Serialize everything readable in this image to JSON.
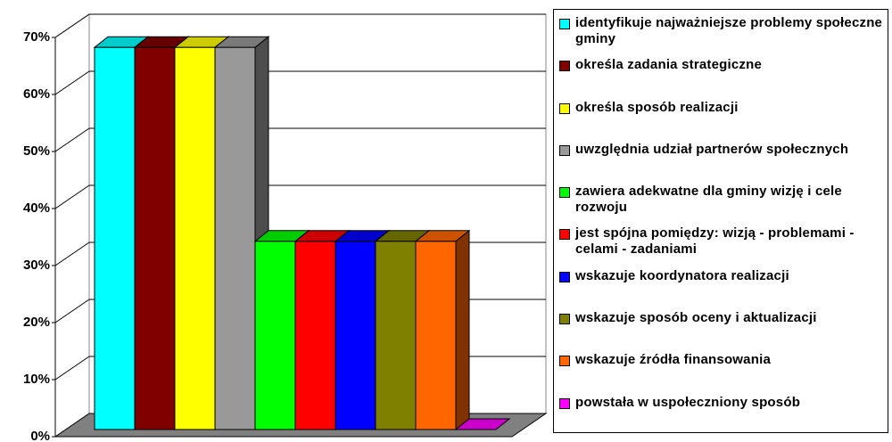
{
  "chart_data": {
    "type": "bar3d",
    "categories": [
      "identyfikuje najważniejsze problemy społeczne gminy",
      "określa zadania strategiczne",
      "określa sposób realizacji",
      "uwzględnia udział partnerów społecznych",
      "zawiera adekwatne dla gminy wizję i cele rozwoju",
      "jest spójna pomiędzy: wizją - problemami - celami - zadaniami",
      "wskazuje koordynatora realizacji",
      "wskazuje sposób oceny i aktualizacji",
      "wskazuje źródła finansowania",
      "powstała w uspołeczniony sposób"
    ],
    "values": [
      67,
      67,
      67,
      67,
      33,
      33,
      33,
      33,
      33,
      0
    ],
    "colors": [
      "#00ffff",
      "#800000",
      "#ffff00",
      "#999999",
      "#00ff00",
      "#ff0000",
      "#0000ff",
      "#808000",
      "#ff6600",
      "#ff00ff"
    ],
    "ylim": [
      0,
      70
    ],
    "yticks": [
      {
        "value": 0,
        "label": "0%"
      },
      {
        "value": 10,
        "label": "10%"
      },
      {
        "value": 20,
        "label": "20%"
      },
      {
        "value": 30,
        "label": "30%"
      },
      {
        "value": 40,
        "label": "40%"
      },
      {
        "value": 50,
        "label": "50%"
      },
      {
        "value": 60,
        "label": "60%"
      },
      {
        "value": 70,
        "label": "70%"
      }
    ],
    "grid": true
  }
}
